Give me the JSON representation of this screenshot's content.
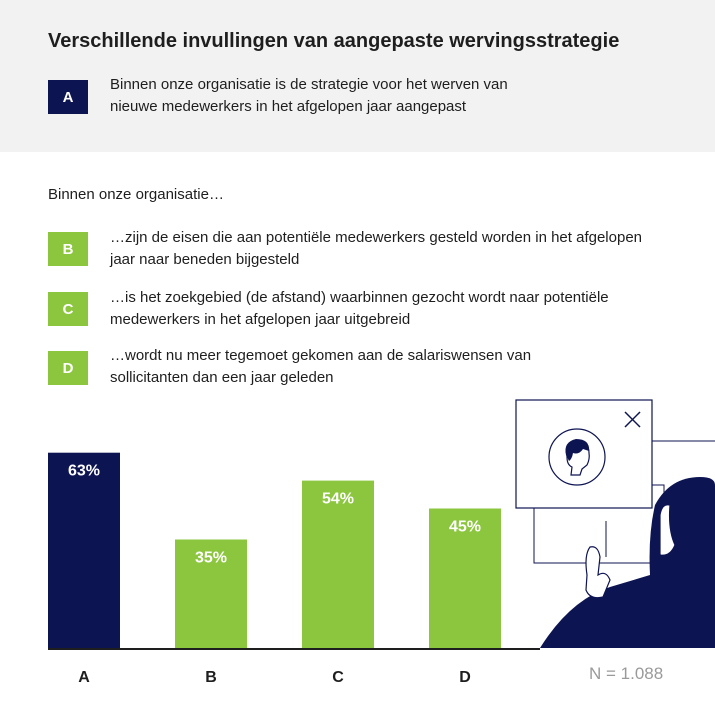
{
  "header": {
    "title": "Verschillende invullingen van aangepaste wervingsstrategie",
    "item_a": {
      "letter": "A",
      "text": "Binnen onze organisatie is de strategie voor het werven van nieuwe medewerkers in het afgelopen jaar aangepast"
    }
  },
  "intro": "Binnen onze organisatie…",
  "items": [
    {
      "letter": "B",
      "text": "…zijn de eisen die aan potentiële medewerkers gesteld worden in het afgelopen jaar naar beneden bijgesteld"
    },
    {
      "letter": "C",
      "text": "…is het zoekgebied (de afstand) waarbinnen gezocht wordt naar potentiële medewerkers in het afgelopen jaar uitgebreid"
    },
    {
      "letter": "D",
      "text": "…wordt nu meer tegemoet gekomen aan de salariswensen van sollicitanten dan een jaar geleden"
    }
  ],
  "sample_size": "N = 1.088",
  "colors": {
    "navy": "#0d1452",
    "green": "#8cc63f",
    "axis": "#1e1e1e",
    "note": "#9a9a9a"
  },
  "chart_data": {
    "type": "bar",
    "categories": [
      "A",
      "B",
      "C",
      "D"
    ],
    "values": [
      63,
      35,
      54,
      45
    ],
    "value_labels": [
      "63%",
      "35%",
      "54%",
      "45%"
    ],
    "bar_colors": [
      "#0d1452",
      "#8cc63f",
      "#8cc63f",
      "#8cc63f"
    ],
    "ylim": [
      0,
      100
    ],
    "grid": false,
    "title": "",
    "xlabel": "",
    "ylabel": ""
  }
}
